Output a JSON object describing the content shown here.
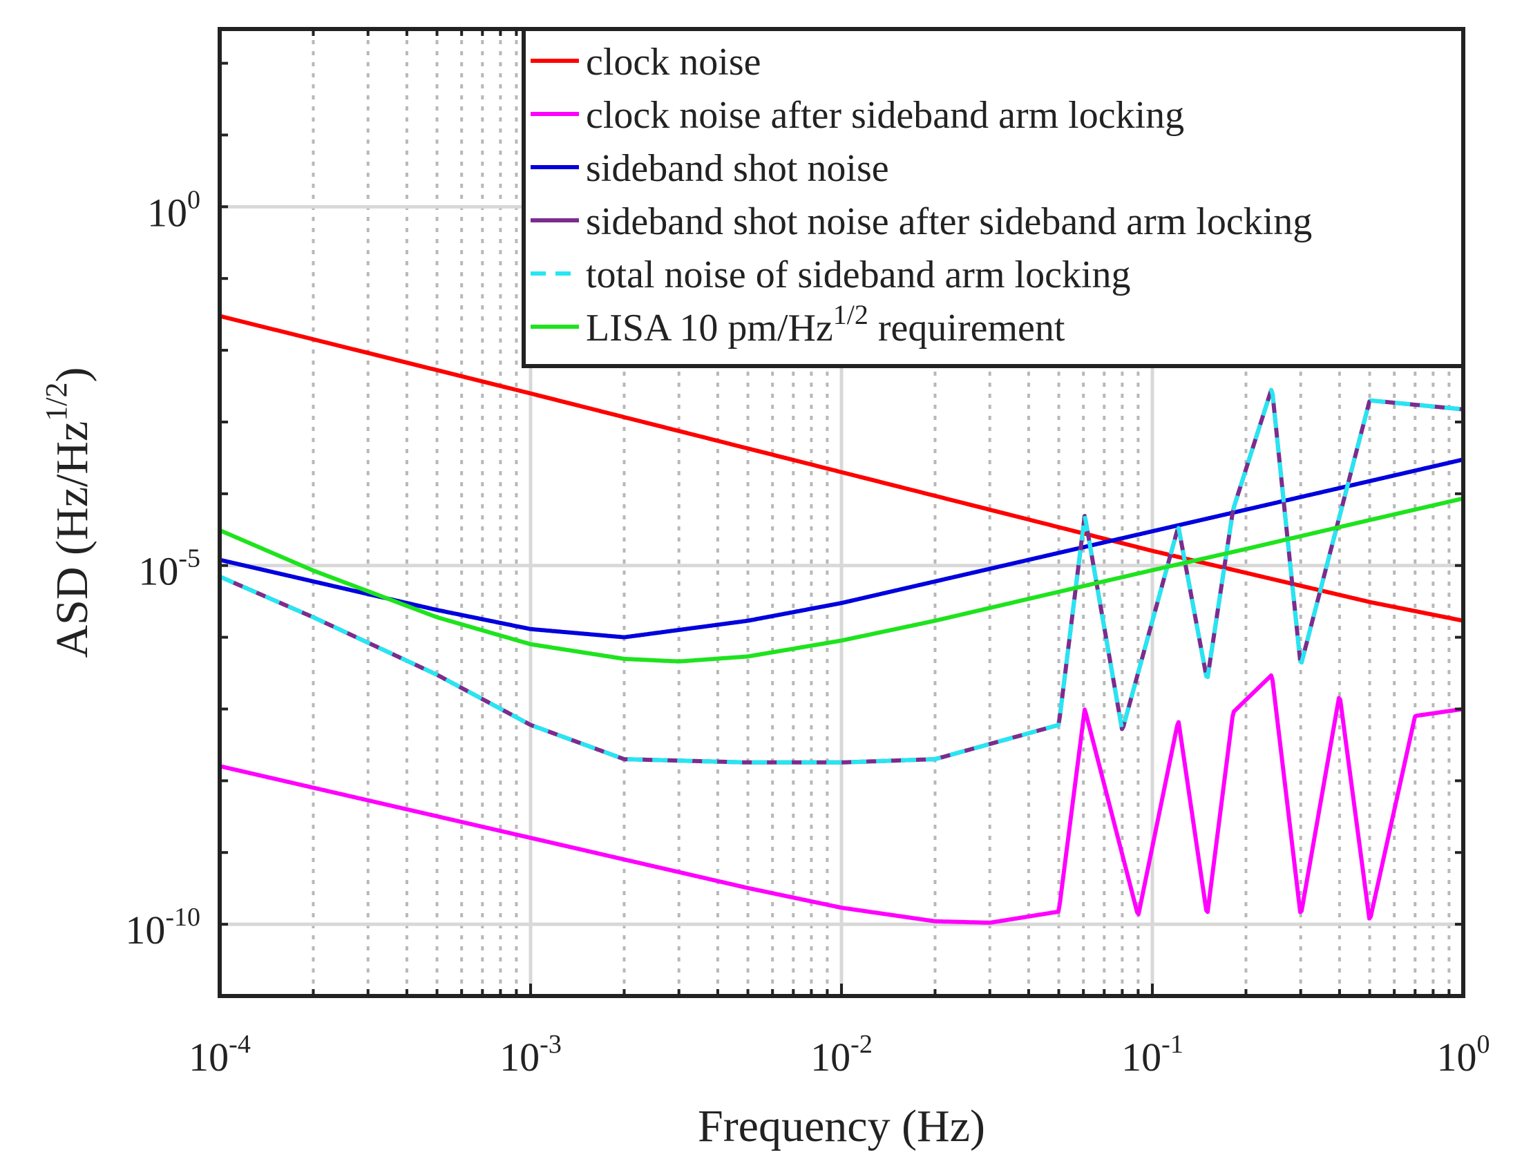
{
  "chart_data": {
    "type": "line",
    "title": "",
    "xlabel": "Frequency (Hz)",
    "ylabel": {
      "prefix": "ASD (Hz/Hz",
      "exponent": "1/2",
      "suffix": ")"
    },
    "xscale": "log",
    "yscale": "log",
    "xlim": [
      0.0001,
      1
    ],
    "ylim": [
      1e-11,
      300.0
    ],
    "grid": true,
    "legend_position": "top-right",
    "x_ticks": [
      {
        "value": 0.0001,
        "base": "10",
        "exp": "-4"
      },
      {
        "value": 0.001,
        "base": "10",
        "exp": "-3"
      },
      {
        "value": 0.01,
        "base": "10",
        "exp": "-2"
      },
      {
        "value": 0.1,
        "base": "10",
        "exp": "-1"
      },
      {
        "value": 1,
        "base": "10",
        "exp": "0"
      }
    ],
    "y_ticks": [
      {
        "value": 1,
        "base": "10",
        "exp": "0"
      },
      {
        "value": 1e-05,
        "base": "10",
        "exp": "-5"
      },
      {
        "value": 1e-10,
        "base": "10",
        "exp": "-10"
      }
    ],
    "series": [
      {
        "name": "clock noise",
        "color": "#ff0000",
        "style": "solid",
        "x": [
          0.0001,
          0.001,
          0.01,
          0.1,
          0.2,
          0.5,
          1
        ],
        "y": [
          0.03,
          0.0025,
          0.0002,
          1.6e-05,
          7.9e-06,
          3.1e-06,
          1.7e-06
        ]
      },
      {
        "name": "clock noise after sideband arm locking",
        "color": "#ff00ff",
        "style": "solid",
        "x": [
          0.0001,
          0.0002,
          0.0005,
          0.001,
          0.002,
          0.005,
          0.01,
          0.02,
          0.03,
          0.05,
          0.0606,
          0.09,
          0.1212,
          0.15,
          0.1818,
          0.2424,
          0.3,
          0.4,
          0.5,
          0.7,
          1
        ],
        "y": [
          1.6e-08,
          8e-09,
          3.2e-09,
          1.6e-09,
          8e-10,
          3.2e-10,
          1.7e-10,
          1.1e-10,
          1.05e-10,
          1.5e-10,
          1e-07,
          1.3e-10,
          7e-08,
          1.3e-10,
          9e-08,
          3e-07,
          1.3e-10,
          1.6e-07,
          1.1e-10,
          8e-08,
          1e-07
        ],
        "resonances": [
          0.0606,
          0.1212,
          0.1818,
          0.2424,
          0.303,
          0.3636,
          0.4242,
          0.4848,
          0.5454,
          0.606,
          0.6666,
          0.7272,
          0.7878,
          0.8484,
          0.909,
          0.9696
        ],
        "floor": [
          0.0606,
          1e-10,
          1.3e-10,
          5e-11
        ]
      },
      {
        "name": "sideband shot noise",
        "color": "#0000dd",
        "style": "solid",
        "x": [
          0.0001,
          0.0002,
          0.0005,
          0.001,
          0.002,
          0.005,
          0.01,
          0.02,
          0.05,
          0.1,
          0.2,
          0.5,
          1
        ],
        "y": [
          1.2e-05,
          6e-06,
          2.4e-06,
          1.3e-06,
          1e-06,
          1.7e-06,
          3e-06,
          6e-06,
          1.5e-05,
          3e-05,
          6e-05,
          0.00015,
          0.0003
        ]
      },
      {
        "name": "sideband shot noise after sideband arm locking",
        "color": "#7b2c8c",
        "style": "solid",
        "x": [
          0.0001,
          0.0002,
          0.0005,
          0.001,
          0.002,
          0.005,
          0.01,
          0.02,
          0.05,
          0.0606,
          0.08,
          0.1212,
          0.15,
          0.1818,
          0.2424,
          0.3,
          0.5,
          1
        ],
        "y": [
          7e-06,
          1.9e-06,
          3e-07,
          6e-08,
          2e-08,
          1.8e-08,
          1.8e-08,
          2e-08,
          6e-08,
          5e-05,
          5e-08,
          3.5e-05,
          2.5e-07,
          6e-05,
          0.003,
          4e-07,
          0.002,
          0.0015
        ],
        "resonances": [
          0.0606,
          0.1212,
          0.1818,
          0.2424,
          0.303,
          0.3636,
          0.4242,
          0.4848,
          0.5454,
          0.606,
          0.6666,
          0.7272,
          0.7878,
          0.8484,
          0.909,
          0.9696
        ]
      },
      {
        "name": "total noise of sideband arm locking",
        "color": "#26e6f2",
        "style": "dashed",
        "x": [
          0.0001,
          0.0002,
          0.0005,
          0.001,
          0.002,
          0.005,
          0.01,
          0.02,
          0.05,
          0.0606,
          0.08,
          0.1212,
          0.15,
          0.1818,
          0.2424,
          0.3,
          0.5,
          1
        ],
        "y": [
          7e-06,
          1.9e-06,
          3e-07,
          6e-08,
          2e-08,
          1.8e-08,
          1.8e-08,
          2e-08,
          6e-08,
          5e-05,
          5e-08,
          3.5e-05,
          2.5e-07,
          6e-05,
          0.003,
          4e-07,
          0.002,
          0.0015
        ],
        "resonances": [
          0.0606,
          0.1212,
          0.1818,
          0.2424,
          0.303,
          0.3636,
          0.4242,
          0.4848,
          0.5454,
          0.606,
          0.6666,
          0.7272,
          0.7878,
          0.8484,
          0.909,
          0.9696
        ]
      },
      {
        "name": "LISA 10 pm/Hz1/2 requirement",
        "color": "#1ee31e",
        "style": "solid",
        "x": [
          0.0001,
          0.0002,
          0.0005,
          0.001,
          0.002,
          0.003,
          0.005,
          0.01,
          0.02,
          0.05,
          0.1,
          0.2,
          0.5,
          1
        ],
        "y": [
          3.1e-05,
          8.5e-06,
          1.9e-06,
          8e-07,
          5e-07,
          4.6e-07,
          5.4e-07,
          9e-07,
          1.7e-06,
          4.3e-06,
          8.6e-06,
          1.7e-05,
          4.3e-05,
          8.6e-05
        ]
      }
    ],
    "legend": [
      {
        "text": "clock noise",
        "color": "#ff0000",
        "style": "solid"
      },
      {
        "text": "clock noise after sideband arm locking",
        "color": "#ff00ff",
        "style": "solid"
      },
      {
        "text": "sideband shot noise",
        "color": "#0000dd",
        "style": "solid"
      },
      {
        "text": "sideband shot noise after sideband arm locking",
        "color": "#7b2c8c",
        "style": "solid"
      },
      {
        "text": "total noise of sideband arm locking",
        "color": "#26e6f2",
        "style": "dashed"
      },
      {
        "text_prefix": "LISA 10 pm/Hz",
        "text_exp": "1/2",
        "text_suffix": " requirement",
        "color": "#1ee31e",
        "style": "solid"
      }
    ]
  }
}
